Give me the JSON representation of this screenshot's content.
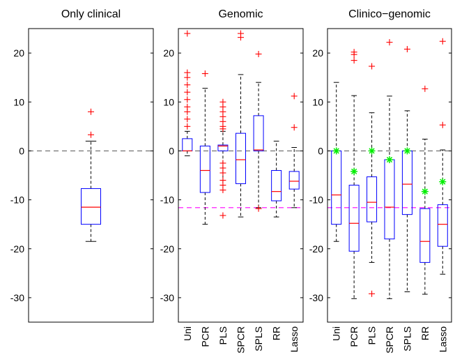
{
  "colors": {
    "box": "#0000ff",
    "median": "#ff0000",
    "outlier": "#ff0000",
    "whisker": "#000000",
    "zero_line": "#666666",
    "clinical_ref_line": "#ff00ff",
    "star_marker": "#00ee00"
  },
  "chart_data": [
    {
      "type": "box",
      "title": "Only clinical",
      "ylim": [
        -35,
        25
      ],
      "yticks": [
        -30,
        -20,
        -10,
        0,
        10,
        20
      ],
      "categories": [
        ""
      ],
      "grid": false,
      "reference_lines": [
        {
          "y": 0,
          "style": "dashed",
          "color": "gray"
        }
      ],
      "boxes": [
        {
          "whisker_low": -18.5,
          "q1": -15,
          "median": -11.5,
          "q3": -7.7,
          "whisker_high": 2,
          "outliers": [
            3.3,
            8
          ]
        }
      ]
    },
    {
      "type": "box",
      "title": "Genomic",
      "ylim": [
        -35,
        25
      ],
      "yticks": [
        -30,
        -20,
        -10,
        0,
        10,
        20
      ],
      "categories": [
        "Uni",
        "PCR",
        "PLS",
        "SPCR",
        "SPLS",
        "RR",
        "Lasso"
      ],
      "grid": false,
      "reference_lines": [
        {
          "y": 0,
          "style": "dashed",
          "color": "gray"
        },
        {
          "y": -11.6,
          "style": "dashed",
          "color": "magenta"
        }
      ],
      "boxes": [
        {
          "whisker_low": -1,
          "q1": 0,
          "median": 0,
          "q3": 2.5,
          "whisker_high": 4,
          "outliers": [
            5,
            6.5,
            8,
            9,
            10.5,
            12,
            13.5,
            15,
            16,
            24
          ]
        },
        {
          "whisker_low": -15,
          "q1": -8.5,
          "median": -4,
          "q3": 1,
          "whisker_high": 12.8,
          "outliers": [
            15.8
          ]
        },
        {
          "whisker_low": -7,
          "q1": 0,
          "median": 1,
          "q3": 1.2,
          "whisker_high": 4,
          "outliers": [
            -13.2,
            -8,
            -7,
            -6,
            -4.5,
            -3.5,
            -2.5,
            4.5,
            5,
            6,
            7,
            8,
            9,
            10
          ]
        },
        {
          "whisker_low": -13.5,
          "q1": -6.7,
          "median": -1.8,
          "q3": 3.6,
          "whisker_high": 15.6,
          "outliers": [
            23.2,
            24
          ]
        },
        {
          "whisker_low": -11.6,
          "q1": 0,
          "median": 0.2,
          "q3": 7.2,
          "whisker_high": 14,
          "outliers": [
            -11.8,
            19.8
          ]
        },
        {
          "whisker_low": -13.5,
          "q1": -10.2,
          "median": -8.3,
          "q3": -4,
          "whisker_high": 2,
          "outliers": []
        },
        {
          "whisker_low": -11.6,
          "q1": -7.8,
          "median": -6.2,
          "q3": -4.2,
          "whisker_high": 0.7,
          "outliers": [
            4.8,
            11.2
          ]
        }
      ]
    },
    {
      "type": "box",
      "title": "Clinico−genomic",
      "ylim": [
        -35,
        25
      ],
      "yticks": [
        -30,
        -20,
        -10,
        0,
        10,
        20
      ],
      "categories": [
        "Uni",
        "PCR",
        "PLS",
        "SPCR",
        "SPLS",
        "RR",
        "Lasso"
      ],
      "grid": false,
      "reference_lines": [
        {
          "y": 0,
          "style": "dashed",
          "color": "gray"
        },
        {
          "y": -11.6,
          "style": "dashed",
          "color": "magenta"
        }
      ],
      "boxes": [
        {
          "whisker_low": -18.5,
          "q1": -15,
          "median": -9,
          "q3": 0,
          "whisker_high": 14,
          "outliers": [],
          "star": 0
        },
        {
          "whisker_low": -30.2,
          "q1": -20.5,
          "median": -14.8,
          "q3": -7,
          "whisker_high": 11.3,
          "outliers": [
            18.5,
            19.7,
            20.2
          ],
          "star": -4.2
        },
        {
          "whisker_low": -22.8,
          "q1": -14.5,
          "median": -10.5,
          "q3": -5.3,
          "whisker_high": 7.8,
          "outliers": [
            -29.2,
            17.3
          ],
          "star": 0
        },
        {
          "whisker_low": -30.2,
          "q1": -18,
          "median": -11.5,
          "q3": -1.8,
          "whisker_high": 11.2,
          "outliers": [
            22.2
          ],
          "star": -1.8
        },
        {
          "whisker_low": -28.8,
          "q1": -13,
          "median": -6.8,
          "q3": 0,
          "whisker_high": 8.2,
          "outliers": [
            20.8
          ],
          "star": 0
        },
        {
          "whisker_low": -29.3,
          "q1": -22.8,
          "median": -18.5,
          "q3": -11.8,
          "whisker_high": 2.4,
          "outliers": [
            12.7
          ],
          "star": -8.3
        },
        {
          "whisker_low": -25.2,
          "q1": -19.5,
          "median": -15,
          "q3": -11,
          "whisker_high": 0.2,
          "outliers": [
            5.3,
            22.4
          ],
          "star": -6.3
        }
      ]
    }
  ]
}
